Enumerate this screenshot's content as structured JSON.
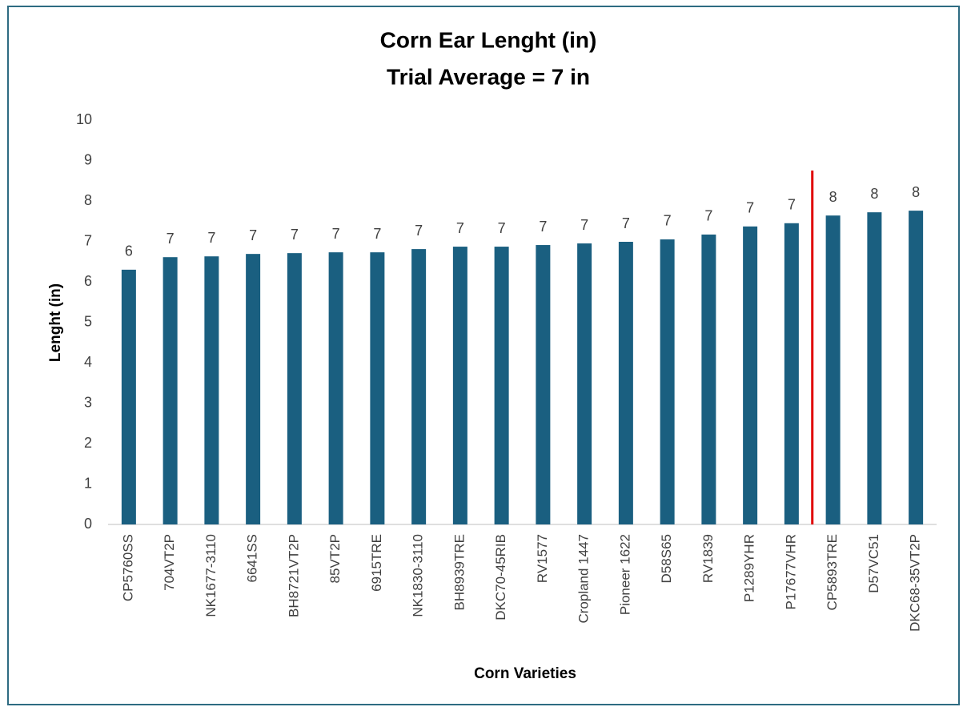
{
  "chart_data": {
    "type": "bar",
    "title": "Corn Ear Lenght (in)",
    "subtitle": "Trial Average  = 7 in",
    "y_label": "Lenght (in)",
    "x_label": "Corn Varieties",
    "categories": [
      "CP5760SS",
      "704VT2P",
      "NK1677-3110",
      "6641SS",
      "BH8721VT2P",
      "85VT2P",
      "6915TRE",
      "NK1830-3110",
      "BH8939TRE",
      "DKC70-45RIB",
      "RV1577",
      "Cropland 1447",
      "Pioneer 1622",
      "D58S65",
      "RV1839",
      "P1289YHR",
      "P17677VHR",
      "CP5893TRE",
      "D57VC51",
      "DKC68-35VT2P"
    ],
    "values": [
      6.3,
      6.61,
      6.63,
      6.69,
      6.71,
      6.73,
      6.73,
      6.81,
      6.87,
      6.87,
      6.91,
      6.95,
      6.99,
      7.05,
      7.17,
      7.37,
      7.45,
      7.64,
      7.72,
      7.76
    ],
    "value_labels": [
      "6",
      "7",
      "7",
      "7",
      "7",
      "7",
      "7",
      "7",
      "7",
      "7",
      "7",
      "7",
      "7",
      "7",
      "7",
      "7",
      "7",
      "8",
      "8",
      "8"
    ],
    "color": "#1a5f80",
    "ylim": [
      0,
      10
    ],
    "yticks": [
      0,
      1,
      2,
      3,
      4,
      5,
      6,
      7,
      8,
      9,
      10
    ],
    "grid": false
  }
}
